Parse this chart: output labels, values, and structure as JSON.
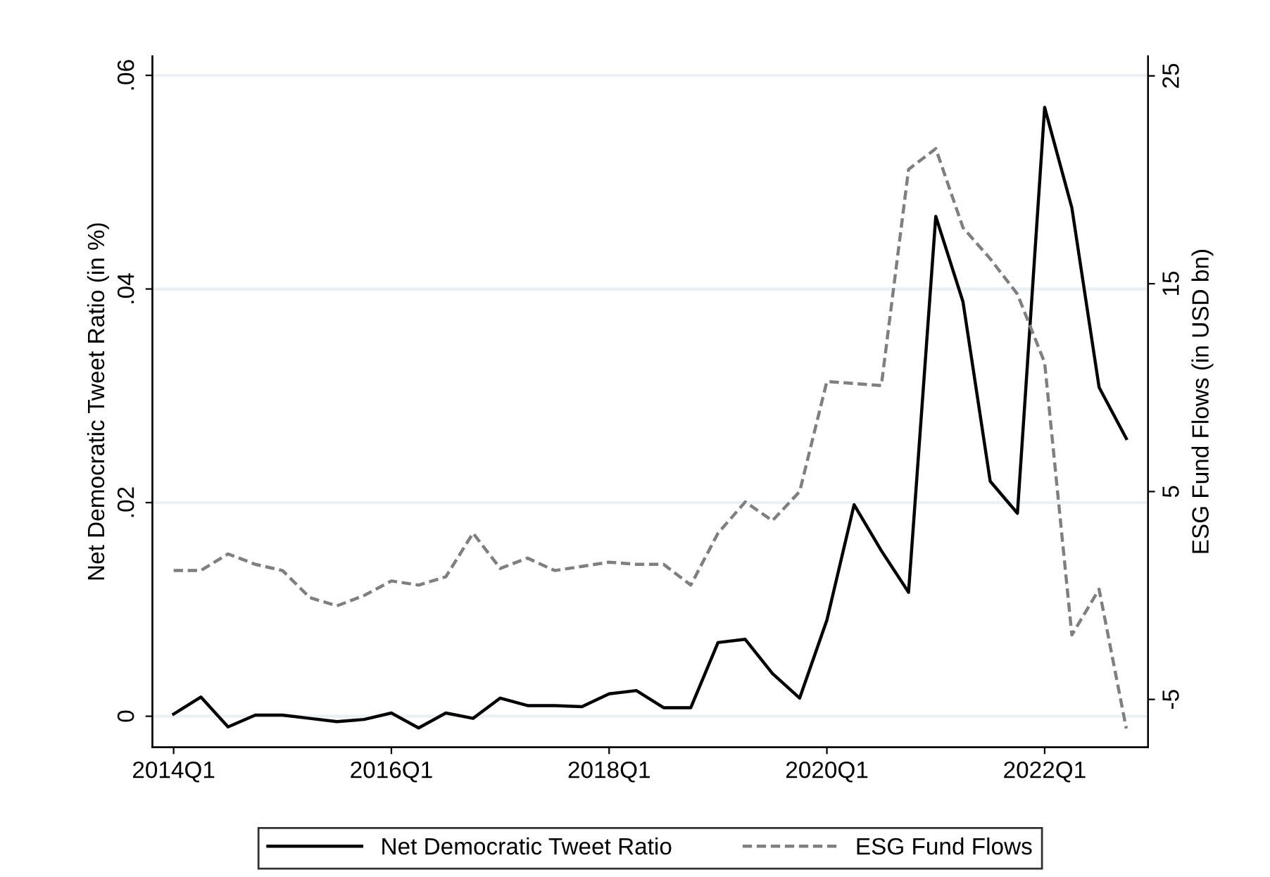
{
  "chart_data": {
    "type": "line",
    "ylabel": "Net Democratic Tweet Ratio (in %)",
    "y2label": "ESG Fund Flows (in USD bn)",
    "categories": [
      "2014Q1",
      null,
      null,
      null,
      null,
      null,
      null,
      null,
      "2016Q1",
      null,
      null,
      null,
      null,
      null,
      null,
      null,
      "2018Q1",
      null,
      null,
      null,
      null,
      null,
      null,
      null,
      "2020Q1",
      null,
      null,
      null,
      null,
      null,
      null,
      null,
      "2022Q1",
      null,
      null,
      null
    ],
    "series": [
      {
        "name": "Net Democratic Tweet Ratio",
        "color": "#000000",
        "line_style": "solid",
        "values": [
          0.0002,
          0.0018,
          -0.001,
          0.0001,
          0.0001,
          -0.0002,
          -0.0005,
          -0.0003,
          0.0003,
          -0.0011,
          0.0003,
          -0.0002,
          0.0017,
          0.001,
          0.001,
          0.0009,
          0.0021,
          0.0024,
          0.0008,
          0.0008,
          0.0069,
          0.0072,
          0.004,
          0.0017,
          0.009,
          0.0198,
          0.0155,
          0.0116,
          0.0468,
          0.0388,
          0.022,
          0.019,
          0.057,
          0.0476,
          0.0308,
          0.026
        ]
      },
      {
        "name": "ESG Fund Flows",
        "color": "#7f7f7f",
        "line_style": "dashed",
        "axis": "y2",
        "values": [
          1.2,
          1.2,
          2.0,
          1.5,
          1.2,
          -0.1,
          -0.5,
          0.0,
          0.7,
          0.5,
          0.9,
          3.0,
          1.3,
          1.8,
          1.2,
          1.4,
          1.6,
          1.5,
          1.5,
          0.5,
          3.0,
          4.5,
          3.6,
          5.0,
          10.3,
          10.2,
          10.1,
          20.5,
          21.5,
          17.7,
          16.2,
          14.5,
          11.2,
          -1.9,
          0.3,
          -6.4
        ]
      }
    ],
    "ylim": [
      -0.0029,
      0.0618
    ],
    "yticks": [
      {
        "value": 0,
        "label": "0"
      },
      {
        "value": 0.02,
        "label": ".02"
      },
      {
        "value": 0.04,
        "label": ".04"
      },
      {
        "value": 0.06,
        "label": ".06"
      }
    ],
    "y2lim": [
      -7.3,
      25.95
    ],
    "y2ticks": [
      -5,
      5,
      15,
      25
    ],
    "grid": "y",
    "legend": "bottom",
    "marker": "none"
  }
}
